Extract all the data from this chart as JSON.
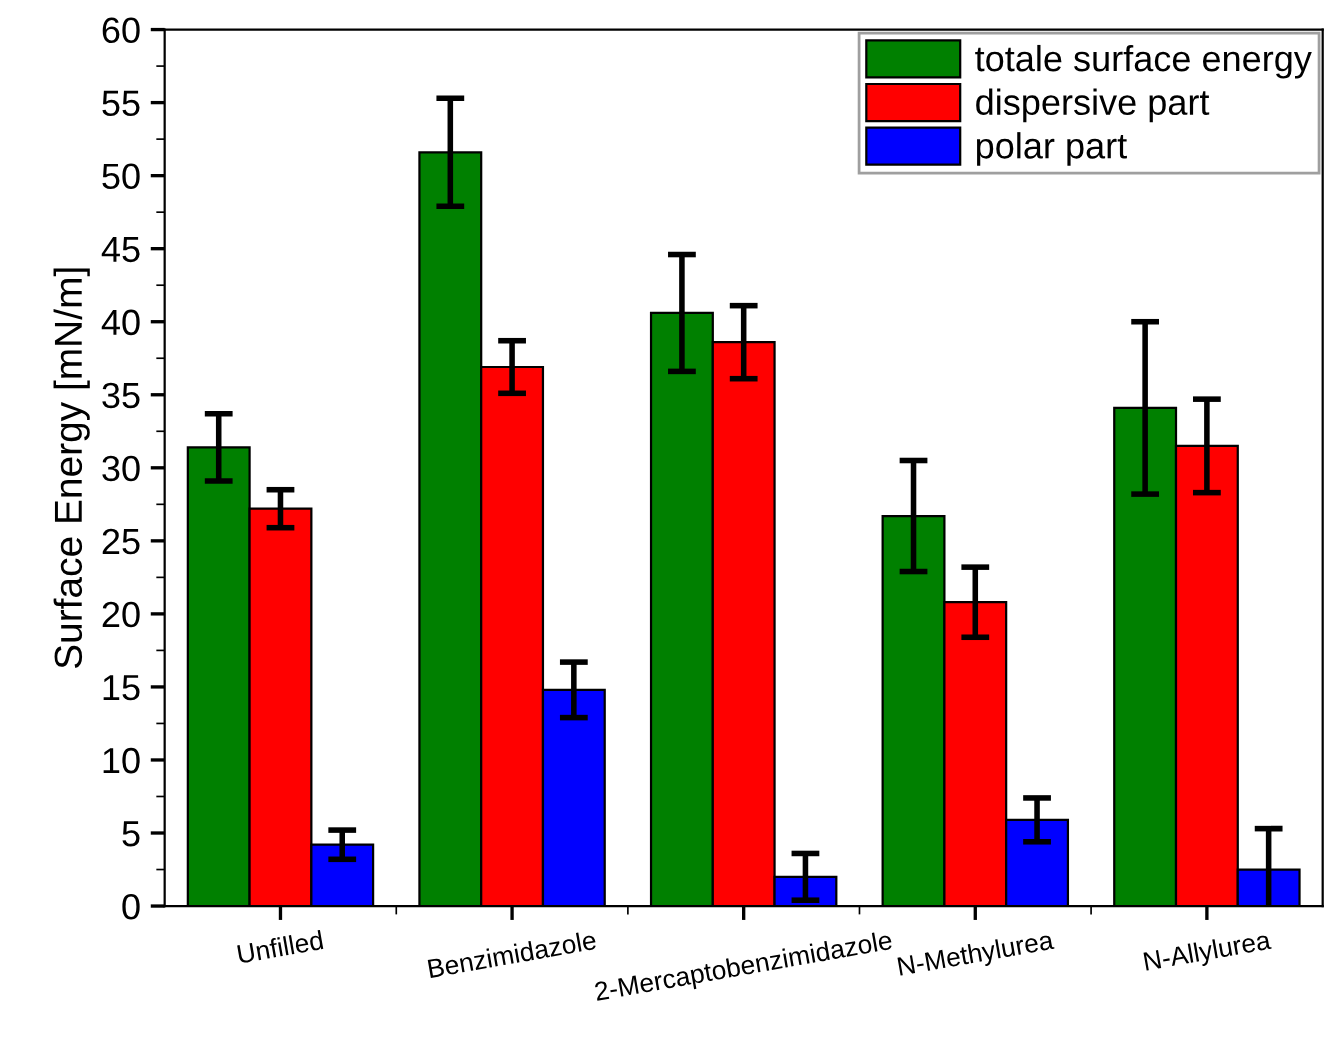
{
  "chart_data": {
    "type": "bar",
    "ylabel": "Surface Energy [mN/m]",
    "categories": [
      "Unfilled",
      "Benzimidazole",
      "2-Mercaptobenzimidazole",
      "N-Methylurea",
      "N-Allylurea"
    ],
    "series": [
      {
        "name": "totale surface energy",
        "color": "#008000",
        "values": [
          31.4,
          51.6,
          40.6,
          26.7,
          34.1
        ],
        "errors": [
          2.3,
          3.7,
          4.0,
          3.8,
          5.9
        ]
      },
      {
        "name": "dispersive part",
        "color": "#ff0000",
        "values": [
          27.2,
          36.9,
          38.6,
          20.8,
          31.5
        ],
        "errors": [
          1.3,
          1.8,
          2.5,
          2.4,
          3.2
        ]
      },
      {
        "name": "polar part",
        "color": "#0000ff",
        "values": [
          4.2,
          14.8,
          2.0,
          5.9,
          2.5
        ],
        "errors": [
          1.0,
          1.9,
          1.6,
          1.5,
          2.8
        ]
      }
    ],
    "ylim": [
      0,
      60
    ],
    "yticks": [
      0,
      5,
      10,
      15,
      20,
      25,
      30,
      35,
      40,
      45,
      50,
      55,
      60
    ],
    "grid": false,
    "legend": "top right"
  }
}
